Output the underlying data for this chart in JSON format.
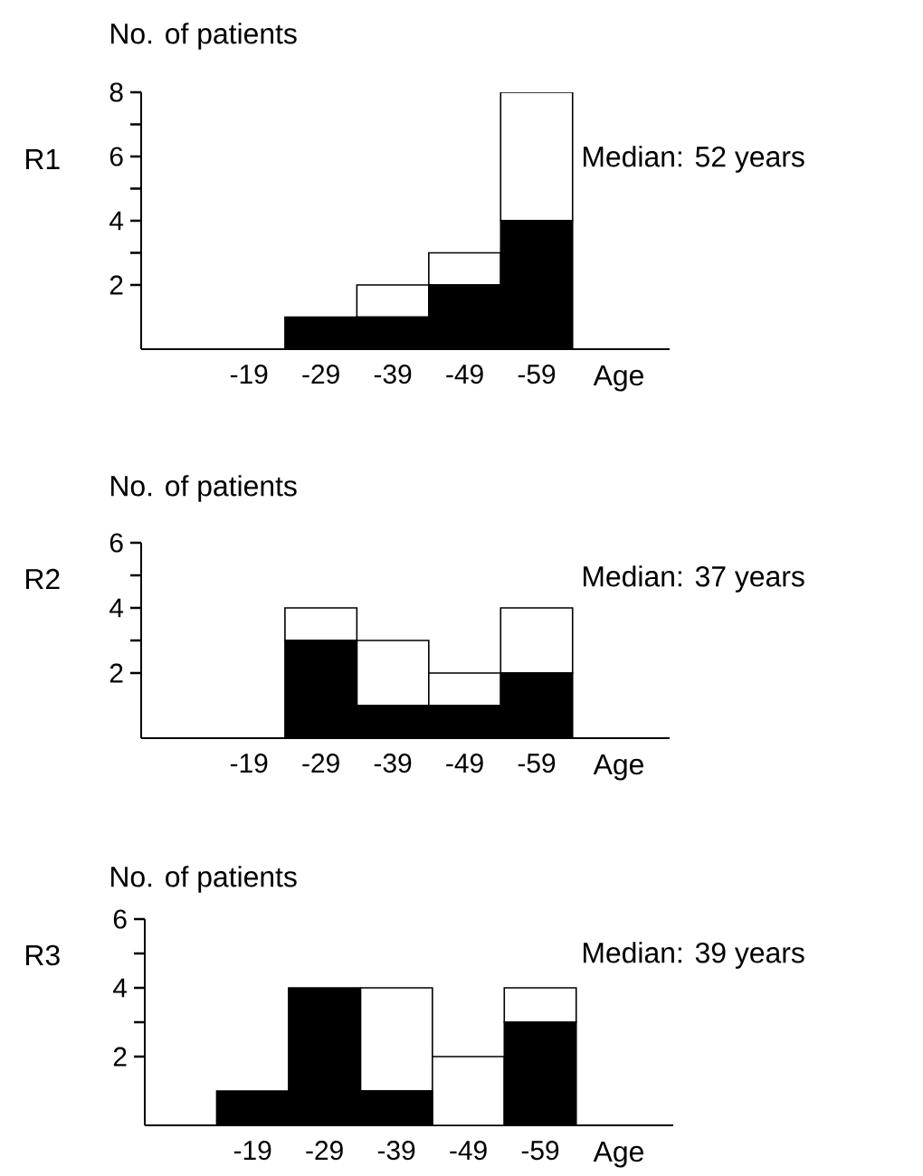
{
  "chart_data": [
    {
      "type": "bar",
      "stacked": true,
      "title": "R1",
      "ylabel": "No. of patients",
      "xlabel": "Age",
      "annotations": [
        "Median: 52 years"
      ],
      "categories": [
        "-19",
        "-29",
        "-39",
        "-49",
        "-59"
      ],
      "series": [
        {
          "color": "#000000",
          "values": [
            0,
            1,
            1,
            2,
            4
          ]
        },
        {
          "color": "#ffffff",
          "values": [
            0,
            0,
            1,
            1,
            4
          ]
        }
      ],
      "ylim": [
        0,
        8
      ],
      "yticks": [
        2,
        4,
        6,
        8
      ]
    },
    {
      "type": "bar",
      "stacked": true,
      "title": "R2",
      "ylabel": "No. of patients",
      "xlabel": "Age",
      "annotations": [
        "Median: 37 years"
      ],
      "categories": [
        "-19",
        "-29",
        "-39",
        "-49",
        "-59"
      ],
      "series": [
        {
          "color": "#000000",
          "values": [
            0,
            3,
            1,
            1,
            2
          ]
        },
        {
          "color": "#ffffff",
          "values": [
            0,
            1,
            2,
            1,
            2
          ]
        }
      ],
      "ylim": [
        0,
        6
      ],
      "yticks": [
        2,
        4,
        6
      ]
    },
    {
      "type": "bar",
      "stacked": true,
      "title": "R3",
      "ylabel": "No. of patients",
      "xlabel": "Age",
      "annotations": [
        "Median: 39 years"
      ],
      "categories": [
        "-19",
        "-29",
        "-39",
        "-49",
        "-59"
      ],
      "series": [
        {
          "color": "#000000",
          "values": [
            1,
            4,
            1,
            0,
            3
          ]
        },
        {
          "color": "#ffffff",
          "values": [
            0,
            0,
            3,
            2,
            1
          ]
        }
      ],
      "ylim": [
        0,
        6
      ],
      "yticks": [
        2,
        4,
        6
      ]
    }
  ]
}
